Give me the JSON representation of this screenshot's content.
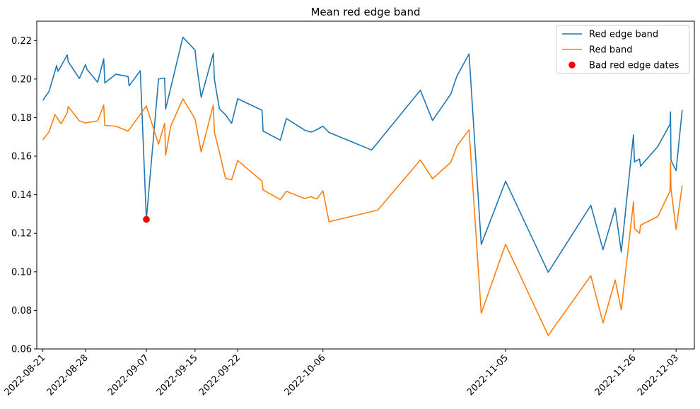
{
  "chart_data": {
    "type": "line",
    "title": "Mean red edge band",
    "xlabel": "",
    "ylabel": "",
    "ylim": [
      0.06,
      0.23
    ],
    "yticks": [
      0.06,
      0.08,
      0.1,
      0.12,
      0.14,
      0.16,
      0.18,
      0.2,
      0.22
    ],
    "ytick_labels": [
      "0.06",
      "0.08",
      "0.10",
      "0.12",
      "0.14",
      "0.16",
      "0.18",
      "0.20",
      "0.22"
    ],
    "xlim": [
      "2022-08-20",
      "2022-12-06"
    ],
    "xticks": [
      "2022-08-21",
      "2022-08-28",
      "2022-09-07",
      "2022-09-15",
      "2022-09-22",
      "2022-10-06",
      "2022-11-05",
      "2022-11-26",
      "2022-12-03"
    ],
    "grid": false,
    "legend_position": "top-right",
    "series": [
      {
        "name": "Red edge band",
        "color": "#1f77b4",
        "points": [
          [
            "2022-08-21 00:00",
            0.189
          ],
          [
            "2022-08-22 00:00",
            0.1935
          ],
          [
            "2022-08-23 00:00",
            0.204
          ],
          [
            "2022-08-23 06:00",
            0.207
          ],
          [
            "2022-08-23 12:00",
            0.204
          ],
          [
            "2022-08-25 00:00",
            0.2125
          ],
          [
            "2022-08-25 04:00",
            0.209
          ],
          [
            "2022-08-27 00:00",
            0.2003
          ],
          [
            "2022-08-28 00:00",
            0.2075
          ],
          [
            "2022-08-28 06:00",
            0.205
          ],
          [
            "2022-08-30 00:00",
            0.1983
          ],
          [
            "2022-08-31 00:00",
            0.2105
          ],
          [
            "2022-08-31 04:00",
            0.198
          ],
          [
            "2022-09-02 00:00",
            0.2025
          ],
          [
            "2022-09-04 00:00",
            0.2013
          ],
          [
            "2022-09-04 04:00",
            0.1965
          ],
          [
            "2022-09-06 00:00",
            0.2043
          ],
          [
            "2022-09-07 00:00",
            0.1272
          ],
          [
            "2022-09-09 00:00",
            0.2
          ],
          [
            "2022-09-10 00:00",
            0.2005
          ],
          [
            "2022-09-10 04:00",
            0.1845
          ],
          [
            "2022-09-13 00:00",
            0.2217
          ],
          [
            "2022-09-15 00:00",
            0.215
          ],
          [
            "2022-09-15 04:00",
            0.2095
          ],
          [
            "2022-09-16 00:00",
            0.1905
          ],
          [
            "2022-09-18 00:00",
            0.2133
          ],
          [
            "2022-09-18 04:00",
            0.2
          ],
          [
            "2022-09-19 00:00",
            0.1845
          ],
          [
            "2022-09-20 00:00",
            0.1815
          ],
          [
            "2022-09-21 00:00",
            0.177
          ],
          [
            "2022-09-22 00:00",
            0.1898
          ],
          [
            "2022-09-26 00:00",
            0.1838
          ],
          [
            "2022-09-26 04:00",
            0.173
          ],
          [
            "2022-09-29 00:00",
            0.1683
          ],
          [
            "2022-09-30 00:00",
            0.1795
          ],
          [
            "2022-10-03 00:00",
            0.1735
          ],
          [
            "2022-10-04 00:00",
            0.1725
          ],
          [
            "2022-10-04 12:00",
            0.173
          ],
          [
            "2022-10-05 00:00",
            0.1738
          ],
          [
            "2022-10-06 00:00",
            0.1755
          ],
          [
            "2022-10-07 00:00",
            0.1723
          ],
          [
            "2022-10-14 00:00",
            0.1632
          ],
          [
            "2022-10-22 00:00",
            0.1942
          ],
          [
            "2022-10-24 00:00",
            0.1785
          ],
          [
            "2022-10-27 00:00",
            0.1922
          ],
          [
            "2022-10-28 00:00",
            0.2015
          ],
          [
            "2022-10-30 00:00",
            0.213
          ],
          [
            "2022-11-01 00:00",
            0.1142
          ],
          [
            "2022-11-05 00:00",
            0.147
          ],
          [
            "2022-11-12 00:00",
            0.0998
          ],
          [
            "2022-11-19 00:00",
            0.1345
          ],
          [
            "2022-11-21 00:00",
            0.1115
          ],
          [
            "2022-11-23 00:00",
            0.133
          ],
          [
            "2022-11-24 00:00",
            0.1103
          ],
          [
            "2022-11-26 00:00",
            0.171
          ],
          [
            "2022-11-26 04:00",
            0.157
          ],
          [
            "2022-11-27 00:00",
            0.1585
          ],
          [
            "2022-11-27 04:00",
            0.1548
          ],
          [
            "2022-11-30 00:00",
            0.165
          ],
          [
            "2022-12-02 00:00",
            0.1765
          ],
          [
            "2022-12-02 02:00",
            0.183
          ],
          [
            "2022-12-02 04:00",
            0.1578
          ],
          [
            "2022-12-03 00:00",
            0.1525
          ],
          [
            "2022-12-04 00:00",
            0.1838
          ]
        ]
      },
      {
        "name": "Red band",
        "color": "#ff7f0e",
        "points": [
          [
            "2022-08-21 00:00",
            0.1685
          ],
          [
            "2022-08-22 00:00",
            0.1725
          ],
          [
            "2022-08-23 00:00",
            0.1815
          ],
          [
            "2022-08-24 00:00",
            0.1768
          ],
          [
            "2022-08-25 00:00",
            0.1825
          ],
          [
            "2022-08-25 04:00",
            0.1857
          ],
          [
            "2022-08-27 00:00",
            0.1783
          ],
          [
            "2022-08-28 00:00",
            0.1772
          ],
          [
            "2022-08-30 00:00",
            0.1783
          ],
          [
            "2022-08-31 00:00",
            0.1865
          ],
          [
            "2022-08-31 04:00",
            0.176
          ],
          [
            "2022-09-02 00:00",
            0.1755
          ],
          [
            "2022-09-04 00:00",
            0.173
          ],
          [
            "2022-09-07 00:00",
            0.186
          ],
          [
            "2022-09-09 00:00",
            0.1662
          ],
          [
            "2022-09-10 00:00",
            0.177
          ],
          [
            "2022-09-10 04:00",
            0.1605
          ],
          [
            "2022-09-11 00:00",
            0.1755
          ],
          [
            "2022-09-13 00:00",
            0.1897
          ],
          [
            "2022-09-15 00:00",
            0.1793
          ],
          [
            "2022-09-16 00:00",
            0.1622
          ],
          [
            "2022-09-18 00:00",
            0.1865
          ],
          [
            "2022-09-18 04:00",
            0.1725
          ],
          [
            "2022-09-19 00:00",
            0.162
          ],
          [
            "2022-09-20 00:00",
            0.1485
          ],
          [
            "2022-09-21 00:00",
            0.1477
          ],
          [
            "2022-09-22 00:00",
            0.1578
          ],
          [
            "2022-09-26 00:00",
            0.147
          ],
          [
            "2022-09-26 04:00",
            0.1425
          ],
          [
            "2022-09-29 00:00",
            0.1375
          ],
          [
            "2022-09-30 00:00",
            0.1418
          ],
          [
            "2022-10-03 00:00",
            0.138
          ],
          [
            "2022-10-04 00:00",
            0.139
          ],
          [
            "2022-10-05 00:00",
            0.1378
          ],
          [
            "2022-10-06 00:00",
            0.142
          ],
          [
            "2022-10-07 00:00",
            0.126
          ],
          [
            "2022-10-15 00:00",
            0.132
          ],
          [
            "2022-10-22 00:00",
            0.158
          ],
          [
            "2022-10-24 00:00",
            0.1483
          ],
          [
            "2022-10-27 00:00",
            0.1568
          ],
          [
            "2022-10-28 00:00",
            0.1652
          ],
          [
            "2022-10-30 00:00",
            0.1737
          ],
          [
            "2022-11-01 00:00",
            0.0785
          ],
          [
            "2022-11-05 00:00",
            0.1143
          ],
          [
            "2022-11-12 00:00",
            0.067
          ],
          [
            "2022-11-19 00:00",
            0.098
          ],
          [
            "2022-11-21 00:00",
            0.0735
          ],
          [
            "2022-11-23 00:00",
            0.0958
          ],
          [
            "2022-11-24 00:00",
            0.0803
          ],
          [
            "2022-11-26 00:00",
            0.1363
          ],
          [
            "2022-11-26 04:00",
            0.1225
          ],
          [
            "2022-11-27 00:00",
            0.12
          ],
          [
            "2022-11-27 04:00",
            0.1242
          ],
          [
            "2022-11-30 00:00",
            0.1287
          ],
          [
            "2022-12-02 00:00",
            0.1418
          ],
          [
            "2022-12-02 02:00",
            0.157
          ],
          [
            "2022-12-02 04:00",
            0.143
          ],
          [
            "2022-12-03 00:00",
            0.122
          ],
          [
            "2022-12-04 00:00",
            0.1448
          ]
        ]
      },
      {
        "name": "Bad red edge dates",
        "type": "scatter",
        "color": "#ff0000",
        "points": [
          [
            "2022-09-07 00:00",
            0.1272
          ]
        ]
      }
    ]
  }
}
